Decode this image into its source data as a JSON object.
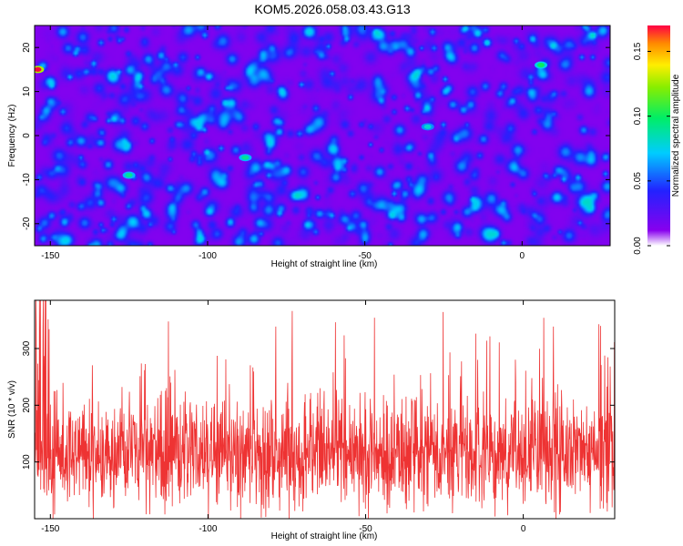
{
  "title": "KOM5.2026.058.03.43.G13",
  "chart_data": [
    {
      "type": "heatmap",
      "xlabel": "Height of straight line (km)",
      "ylabel": "Frequency (Hz)",
      "xlim": [
        -155,
        28
      ],
      "ylim": [
        -25,
        25
      ],
      "xticks": [
        -150,
        -100,
        -50,
        0
      ],
      "xtick_labels": [
        "-150",
        "-100",
        "-50",
        "0"
      ],
      "yticks": [
        -20,
        -10,
        0,
        10,
        20
      ],
      "ytick_labels": [
        "-20",
        "-10",
        "0",
        "10",
        "20"
      ],
      "colorbar": {
        "label": "Normalized spectral amplitude",
        "range": [
          0,
          0.17
        ],
        "ticks": [
          0,
          0.05,
          0.1,
          0.15
        ],
        "tick_labels": [
          "0.00",
          "0.05",
          "0.10",
          "0.15"
        ]
      },
      "hotspots": [
        {
          "x": -154,
          "y": 15,
          "value": 0.17
        },
        {
          "x": -88,
          "y": -5,
          "value": 0.09
        },
        {
          "x": 6,
          "y": 16,
          "value": 0.1
        },
        {
          "x": -125,
          "y": -9,
          "value": 0.09
        },
        {
          "x": -30,
          "y": 2,
          "value": 0.08
        }
      ]
    },
    {
      "type": "line",
      "xlabel": "Height of straight line (km)",
      "ylabel": "SNR (10 * v/v)",
      "xlim": [
        -155,
        29
      ],
      "ylim": [
        0,
        385
      ],
      "xticks": [
        -150,
        -100,
        -50,
        0
      ],
      "xtick_labels": [
        "-150",
        "-100",
        "-50",
        "0"
      ],
      "yticks": [
        100,
        200,
        300
      ],
      "ytick_labels": [
        "100",
        "200",
        "300"
      ],
      "series": [
        {
          "name": "SNR",
          "color": "#ee3333",
          "mean": 115,
          "min": 0,
          "max": 385,
          "points": 1800
        }
      ]
    }
  ]
}
